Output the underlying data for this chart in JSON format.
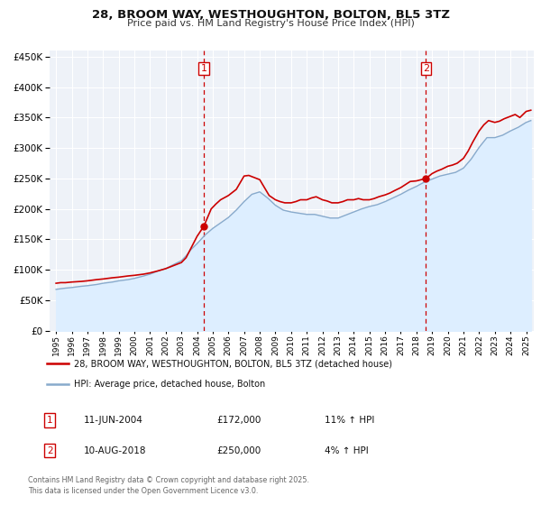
{
  "title": "28, BROOM WAY, WESTHOUGHTON, BOLTON, BL5 3TZ",
  "subtitle": "Price paid vs. HM Land Registry's House Price Index (HPI)",
  "legend_label_red": "28, BROOM WAY, WESTHOUGHTON, BOLTON, BL5 3TZ (detached house)",
  "legend_label_blue": "HPI: Average price, detached house, Bolton",
  "marker1_date": "11-JUN-2004",
  "marker1_price": 172000,
  "marker1_hpi": "11% ↑ HPI",
  "marker2_date": "10-AUG-2018",
  "marker2_price": 250000,
  "marker2_hpi": "4% ↑ HPI",
  "footer": "Contains HM Land Registry data © Crown copyright and database right 2025.\nThis data is licensed under the Open Government Licence v3.0.",
  "red_color": "#cc0000",
  "blue_line_color": "#88aacc",
  "blue_fill_color": "#ddeeff",
  "dashed_line_color": "#cc0000",
  "background_color": "#eef2f8",
  "grid_color": "#ffffff",
  "ylim": [
    0,
    460000
  ],
  "xlim_start": 1994.6,
  "xlim_end": 2025.5,
  "marker1_x": 2004.44,
  "marker2_x": 2018.61,
  "red_x": [
    1995.0,
    1995.3,
    1995.6,
    1996.0,
    1996.3,
    1996.6,
    1997.0,
    1997.3,
    1997.6,
    1998.0,
    1998.3,
    1998.6,
    1999.0,
    1999.3,
    1999.6,
    2000.0,
    2000.3,
    2000.6,
    2001.0,
    2001.3,
    2001.6,
    2002.0,
    2002.3,
    2002.6,
    2003.0,
    2003.3,
    2003.6,
    2004.0,
    2004.44,
    2004.9,
    2005.2,
    2005.5,
    2006.0,
    2006.5,
    2007.0,
    2007.3,
    2007.6,
    2008.0,
    2008.3,
    2008.6,
    2009.0,
    2009.3,
    2009.6,
    2010.0,
    2010.3,
    2010.6,
    2011.0,
    2011.3,
    2011.6,
    2012.0,
    2012.3,
    2012.6,
    2013.0,
    2013.3,
    2013.6,
    2014.0,
    2014.3,
    2014.6,
    2015.0,
    2015.3,
    2015.6,
    2016.0,
    2016.3,
    2016.6,
    2017.0,
    2017.3,
    2017.6,
    2018.0,
    2018.3,
    2018.61,
    2019.0,
    2019.3,
    2019.6,
    2020.0,
    2020.3,
    2020.6,
    2021.0,
    2021.3,
    2021.6,
    2022.0,
    2022.3,
    2022.6,
    2023.0,
    2023.3,
    2023.6,
    2024.0,
    2024.3,
    2024.6,
    2025.0,
    2025.3
  ],
  "red_y": [
    78000,
    79000,
    79000,
    80000,
    80500,
    81000,
    82000,
    83000,
    84000,
    85000,
    86000,
    87000,
    88000,
    89000,
    90000,
    91000,
    92000,
    93000,
    95000,
    97000,
    99000,
    102000,
    105000,
    108000,
    112000,
    120000,
    135000,
    155000,
    172000,
    200000,
    208000,
    215000,
    222000,
    232000,
    254000,
    255000,
    252000,
    248000,
    235000,
    222000,
    215000,
    212000,
    210000,
    210000,
    212000,
    215000,
    215000,
    218000,
    220000,
    215000,
    213000,
    210000,
    210000,
    212000,
    215000,
    215000,
    217000,
    215000,
    215000,
    217000,
    220000,
    223000,
    226000,
    230000,
    235000,
    240000,
    245000,
    246000,
    248000,
    250000,
    258000,
    262000,
    265000,
    270000,
    272000,
    275000,
    283000,
    295000,
    310000,
    328000,
    338000,
    345000,
    342000,
    344000,
    348000,
    352000,
    355000,
    350000,
    360000,
    362000
  ],
  "blue_x": [
    1995.0,
    1995.3,
    1995.6,
    1996.0,
    1996.3,
    1996.6,
    1997.0,
    1997.3,
    1997.6,
    1998.0,
    1998.3,
    1998.6,
    1999.0,
    1999.3,
    1999.6,
    2000.0,
    2000.3,
    2000.6,
    2001.0,
    2001.3,
    2001.6,
    2002.0,
    2002.3,
    2002.6,
    2003.0,
    2003.3,
    2003.6,
    2004.0,
    2004.5,
    2005.0,
    2005.5,
    2006.0,
    2006.5,
    2007.0,
    2007.5,
    2008.0,
    2008.5,
    2009.0,
    2009.5,
    2010.0,
    2010.5,
    2011.0,
    2011.5,
    2012.0,
    2012.5,
    2013.0,
    2013.5,
    2014.0,
    2014.5,
    2015.0,
    2015.5,
    2016.0,
    2016.5,
    2017.0,
    2017.5,
    2018.0,
    2018.5,
    2019.0,
    2019.5,
    2020.0,
    2020.5,
    2021.0,
    2021.5,
    2022.0,
    2022.5,
    2023.0,
    2023.5,
    2024.0,
    2024.5,
    2025.0,
    2025.3
  ],
  "blue_y": [
    68000,
    69000,
    70000,
    71000,
    72000,
    73000,
    74000,
    75000,
    76000,
    78000,
    79000,
    80000,
    82000,
    83000,
    84000,
    86000,
    88000,
    90000,
    93000,
    96000,
    99000,
    102000,
    106000,
    110000,
    115000,
    123000,
    133000,
    143000,
    157000,
    168000,
    177000,
    186000,
    198000,
    212000,
    224000,
    228000,
    218000,
    206000,
    198000,
    195000,
    193000,
    191000,
    191000,
    188000,
    185000,
    185000,
    190000,
    195000,
    200000,
    204000,
    207000,
    212000,
    218000,
    224000,
    231000,
    237000,
    244000,
    249000,
    254000,
    257000,
    260000,
    267000,
    282000,
    301000,
    317000,
    317000,
    321000,
    328000,
    334000,
    342000,
    345000
  ]
}
